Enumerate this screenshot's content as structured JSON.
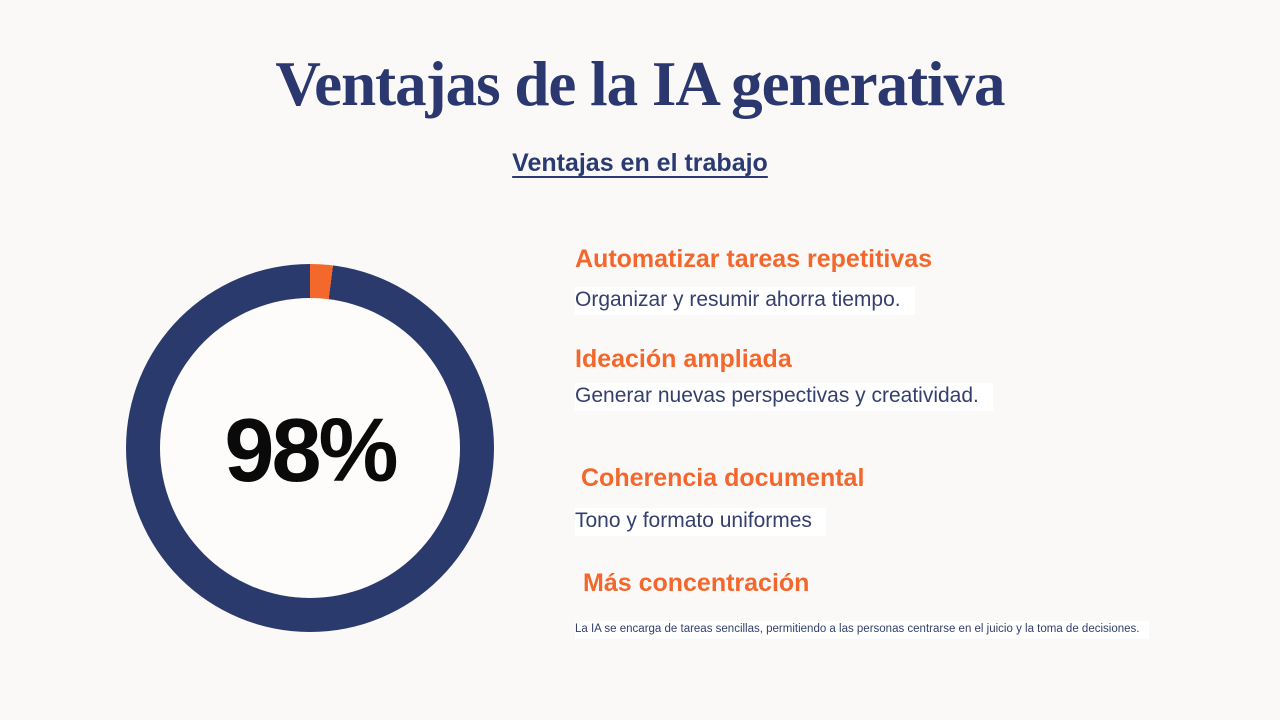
{
  "colors": {
    "background": "#FBF9F7",
    "title_navy": "#2A386F",
    "subtitle_navy": "#2A3A72",
    "body_navy": "#333F6D",
    "orange": "#F4672C",
    "center_text": "#0A0A0A",
    "highlight": "#FFFFFF",
    "hole": "#FDFCFA"
  },
  "header": {
    "title": "Ventajas de la IA generativa",
    "subtitle": "Ventajas en el trabajo"
  },
  "chart_data": {
    "type": "pie",
    "subtype": "donut",
    "title": "",
    "center_label": "98%",
    "legend": "none",
    "start_angle_deg": 0,
    "values": [
      98,
      2
    ],
    "slice_colors": [
      "#2B3A6D",
      "#F4682B"
    ],
    "ring_thickness_px": 34
  },
  "benefits": {
    "items": [
      {
        "heading": "Automatizar tareas repetitivas",
        "description": "Organizar y resumir ahorra tiempo."
      },
      {
        "heading": "Ideación ampliada",
        "description": "Generar nuevas perspectivas y creatividad."
      },
      {
        "heading": "Coherencia documental",
        "description": "Tono y formato uniformes"
      },
      {
        "heading": "Más concentración",
        "description": "La IA se encarga de tareas sencillas, permitiendo a las personas centrarse en el juicio y la toma de decisiones."
      }
    ]
  }
}
